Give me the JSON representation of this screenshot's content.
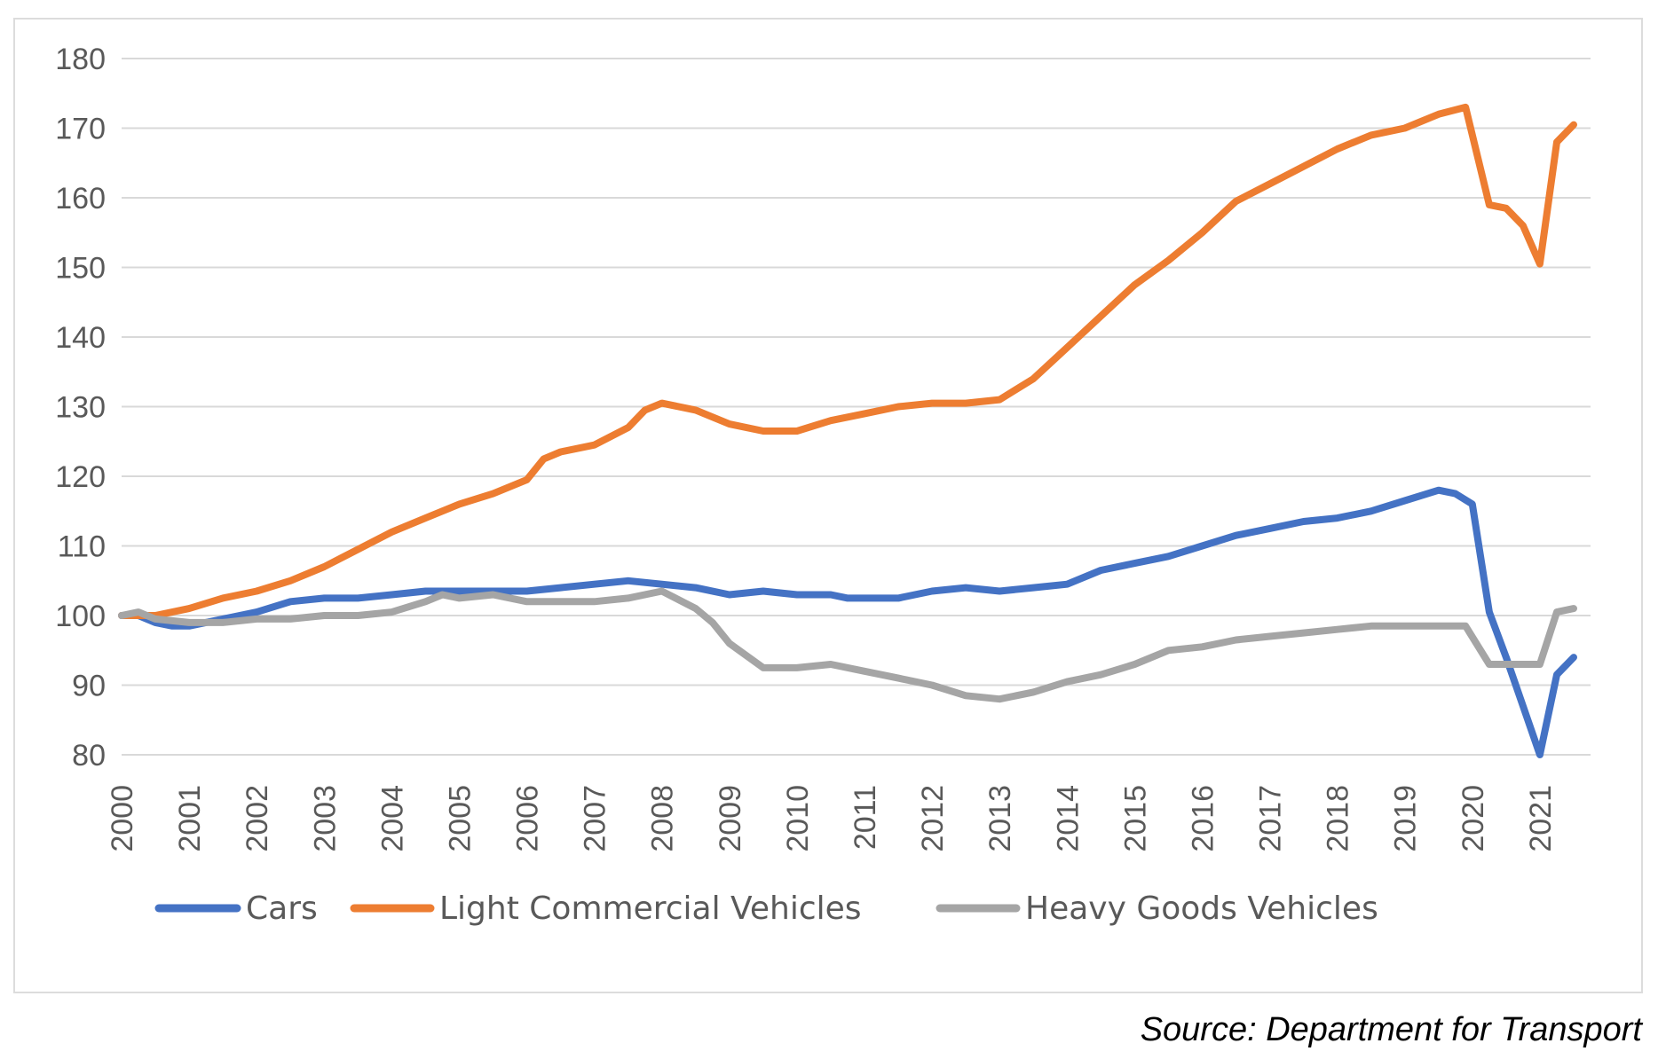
{
  "chart_data": {
    "type": "line",
    "title": "",
    "xlabel": "",
    "ylabel": "",
    "ylim": [
      80,
      180
    ],
    "yticks": [
      80,
      90,
      100,
      110,
      120,
      130,
      140,
      150,
      160,
      170,
      180
    ],
    "ytick_labels": [
      "80",
      "90",
      "100",
      "110",
      "120",
      "130",
      "140",
      "150",
      "160",
      "170",
      "180"
    ],
    "xlim": [
      2000,
      2021.75
    ],
    "xticks": [
      2000,
      2001,
      2002,
      2003,
      2004,
      2005,
      2006,
      2007,
      2008,
      2009,
      2010,
      2011,
      2012,
      2013,
      2014,
      2015,
      2016,
      2017,
      2018,
      2019,
      2020,
      2021
    ],
    "xtick_labels": [
      "2000",
      "2001",
      "2002",
      "2003",
      "2004",
      "2005",
      "2006",
      "2007",
      "2008",
      "2009",
      "2010",
      "2011",
      "2012",
      "2013",
      "2014",
      "2015",
      "2016",
      "2017",
      "2018",
      "2019",
      "2020",
      "2021"
    ],
    "grid": true,
    "legend_position": "bottom",
    "series": [
      {
        "name": "Cars",
        "color": "#4472C4",
        "points": [
          [
            2000,
            100
          ],
          [
            2000.25,
            100
          ],
          [
            2000.5,
            99
          ],
          [
            2000.75,
            98.5
          ],
          [
            2001,
            98.5
          ],
          [
            2001.5,
            99.5
          ],
          [
            2002,
            100.5
          ],
          [
            2002.5,
            102
          ],
          [
            2003,
            102.5
          ],
          [
            2003.5,
            102.5
          ],
          [
            2004,
            103
          ],
          [
            2004.5,
            103.5
          ],
          [
            2005,
            103.5
          ],
          [
            2005.5,
            103.5
          ],
          [
            2006,
            103.5
          ],
          [
            2006.5,
            104
          ],
          [
            2007,
            104.5
          ],
          [
            2007.5,
            105
          ],
          [
            2008,
            104.5
          ],
          [
            2008.5,
            104
          ],
          [
            2009,
            103
          ],
          [
            2009.5,
            103.5
          ],
          [
            2010,
            103
          ],
          [
            2010.5,
            103
          ],
          [
            2010.75,
            102.5
          ],
          [
            2011,
            102.5
          ],
          [
            2011.5,
            102.5
          ],
          [
            2012,
            103.5
          ],
          [
            2012.5,
            104
          ],
          [
            2013,
            103.5
          ],
          [
            2013.5,
            104
          ],
          [
            2014,
            104.5
          ],
          [
            2014.5,
            106.5
          ],
          [
            2015,
            107.5
          ],
          [
            2015.5,
            108.5
          ],
          [
            2016,
            110
          ],
          [
            2016.5,
            111.5
          ],
          [
            2017,
            112.5
          ],
          [
            2017.5,
            113.5
          ],
          [
            2018,
            114
          ],
          [
            2018.5,
            115
          ],
          [
            2019,
            116.5
          ],
          [
            2019.5,
            118
          ],
          [
            2019.75,
            117.5
          ],
          [
            2020,
            116
          ],
          [
            2020.25,
            100.5
          ],
          [
            2020.5,
            94
          ],
          [
            2020.75,
            87
          ],
          [
            2021,
            80
          ],
          [
            2021.25,
            91.5
          ],
          [
            2021.5,
            94
          ]
        ]
      },
      {
        "name": "Light Commercial Vehicles",
        "color": "#ED7D31",
        "points": [
          [
            2000,
            100
          ],
          [
            2000.5,
            100
          ],
          [
            2001,
            101
          ],
          [
            2001.5,
            102.5
          ],
          [
            2002,
            103.5
          ],
          [
            2002.5,
            105
          ],
          [
            2003,
            107
          ],
          [
            2003.5,
            109.5
          ],
          [
            2004,
            112
          ],
          [
            2004.5,
            114
          ],
          [
            2005,
            116
          ],
          [
            2005.5,
            117.5
          ],
          [
            2006,
            119.5
          ],
          [
            2006.25,
            122.5
          ],
          [
            2006.5,
            123.5
          ],
          [
            2007,
            124.5
          ],
          [
            2007.5,
            127
          ],
          [
            2007.75,
            129.5
          ],
          [
            2008,
            130.5
          ],
          [
            2008.5,
            129.5
          ],
          [
            2009,
            127.5
          ],
          [
            2009.5,
            126.5
          ],
          [
            2010,
            126.5
          ],
          [
            2010.5,
            128
          ],
          [
            2011,
            129
          ],
          [
            2011.5,
            130
          ],
          [
            2012,
            130.5
          ],
          [
            2012.5,
            130.5
          ],
          [
            2013,
            131
          ],
          [
            2013.5,
            134
          ],
          [
            2014,
            138.5
          ],
          [
            2014.5,
            143
          ],
          [
            2015,
            147.5
          ],
          [
            2015.5,
            151
          ],
          [
            2016,
            155
          ],
          [
            2016.5,
            159.5
          ],
          [
            2017,
            162
          ],
          [
            2017.5,
            164.5
          ],
          [
            2018,
            167
          ],
          [
            2018.5,
            169
          ],
          [
            2019,
            170
          ],
          [
            2019.5,
            172
          ],
          [
            2019.9,
            173
          ],
          [
            2020.25,
            159
          ],
          [
            2020.5,
            158.5
          ],
          [
            2020.75,
            156
          ],
          [
            2021,
            150.5
          ],
          [
            2021.25,
            168
          ],
          [
            2021.5,
            170.5
          ]
        ]
      },
      {
        "name": "Heavy Goods Vehicles",
        "color": "#A5A5A5",
        "points": [
          [
            2000,
            100
          ],
          [
            2000.25,
            100.5
          ],
          [
            2000.5,
            99.5
          ],
          [
            2001,
            99
          ],
          [
            2001.5,
            99
          ],
          [
            2002,
            99.5
          ],
          [
            2002.5,
            99.5
          ],
          [
            2003,
            100
          ],
          [
            2003.5,
            100
          ],
          [
            2004,
            100.5
          ],
          [
            2004.5,
            102
          ],
          [
            2004.75,
            103
          ],
          [
            2005,
            102.5
          ],
          [
            2005.5,
            103
          ],
          [
            2006,
            102
          ],
          [
            2006.5,
            102
          ],
          [
            2007,
            102
          ],
          [
            2007.5,
            102.5
          ],
          [
            2008,
            103.5
          ],
          [
            2008.5,
            101
          ],
          [
            2008.75,
            99
          ],
          [
            2009,
            96
          ],
          [
            2009.5,
            92.5
          ],
          [
            2010,
            92.5
          ],
          [
            2010.5,
            93
          ],
          [
            2011,
            92
          ],
          [
            2011.5,
            91
          ],
          [
            2012,
            90
          ],
          [
            2012.5,
            88.5
          ],
          [
            2013,
            88
          ],
          [
            2013.5,
            89
          ],
          [
            2014,
            90.5
          ],
          [
            2014.5,
            91.5
          ],
          [
            2015,
            93
          ],
          [
            2015.5,
            95
          ],
          [
            2016,
            95.5
          ],
          [
            2016.5,
            96.5
          ],
          [
            2017,
            97
          ],
          [
            2017.5,
            97.5
          ],
          [
            2018,
            98
          ],
          [
            2018.5,
            98.5
          ],
          [
            2019,
            98.5
          ],
          [
            2019.5,
            98.5
          ],
          [
            2019.9,
            98.5
          ],
          [
            2020.25,
            93
          ],
          [
            2020.5,
            93
          ],
          [
            2021,
            93
          ],
          [
            2021.25,
            100.5
          ],
          [
            2021.5,
            101
          ]
        ]
      }
    ]
  },
  "source_note": "Source: Department for Transport"
}
